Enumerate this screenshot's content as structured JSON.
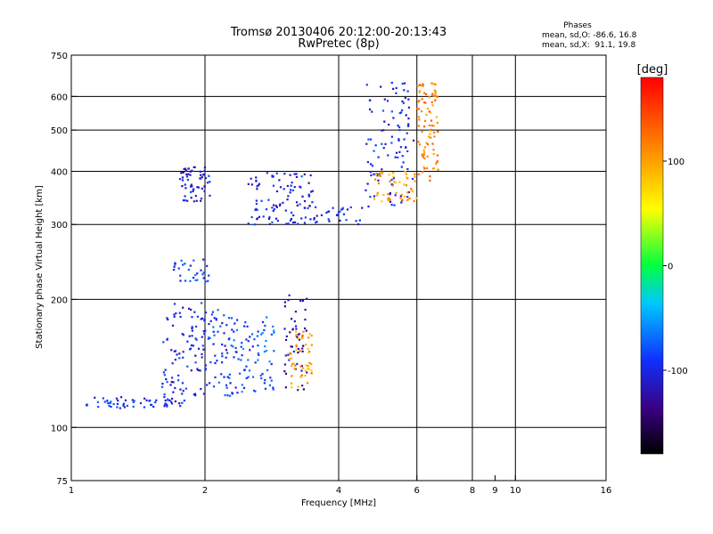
{
  "chart_data": {
    "type": "scatter",
    "title": "Tromsø 20130406 20:12:00-20:13:43",
    "subtitle": "RwPretec (8p)",
    "xlabel": "Frequency [MHz]",
    "ylabel": "Stationary phase Virtual Height [km]",
    "x_scale": "log",
    "y_scale": "log",
    "xlim": [
      1,
      16
    ],
    "ylim": [
      75,
      750
    ],
    "x_ticks": [
      {
        "value": 1,
        "label": "1"
      },
      {
        "value": 2,
        "label": "2"
      },
      {
        "value": 4,
        "label": "4"
      },
      {
        "value": 6,
        "label": "6"
      },
      {
        "value": 8,
        "label": "8"
      },
      {
        "value": 9,
        "label": "9"
      },
      {
        "value": 10,
        "label": "10"
      },
      {
        "value": 16,
        "label": "16"
      }
    ],
    "x_grid": [
      2,
      4,
      6,
      8,
      10
    ],
    "y_ticks": [
      {
        "value": 75,
        "label": "75"
      },
      {
        "value": 100,
        "label": "100"
      },
      {
        "value": 200,
        "label": "200"
      },
      {
        "value": 300,
        "label": "300"
      },
      {
        "value": 400,
        "label": "400"
      },
      {
        "value": 500,
        "label": "500"
      },
      {
        "value": 600,
        "label": "600"
      },
      {
        "value": 750,
        "label": "750"
      }
    ],
    "y_grid": [
      100,
      200,
      300,
      400,
      500,
      600
    ],
    "grid": true,
    "stats": {
      "header": "Phases",
      "line1": "mean, sd,O: -86.6, 16.8",
      "line2": "mean, sd,X:  91.1, 19.8"
    },
    "colorbar": {
      "label": "[deg]",
      "range": [
        -180,
        180
      ],
      "ticks": [
        {
          "value": 100,
          "label": "100"
        },
        {
          "value": 0,
          "label": "0"
        },
        {
          "value": -100,
          "label": "-100"
        }
      ],
      "colormap": "rainbow (black-purple-blue-cyan-green-yellow-orange-red)"
    },
    "traces": [
      {
        "x0": 1.08,
        "x1": 1.8,
        "y0": 111,
        "y1": 118,
        "phase": -95,
        "n": 60
      },
      {
        "x0": 1.6,
        "x1": 2.0,
        "y0": 118,
        "y1": 200,
        "phase": -100,
        "n": 90
      },
      {
        "x0": 2.0,
        "x1": 2.3,
        "y0": 118,
        "y1": 190,
        "phase": -90,
        "n": 60
      },
      {
        "x0": 2.3,
        "x1": 2.9,
        "y0": 120,
        "y1": 185,
        "phase": -80,
        "n": 80
      },
      {
        "x0": 3.0,
        "x1": 3.4,
        "y0": 122,
        "y1": 205,
        "phase": -120,
        "n": 50
      },
      {
        "x0": 3.1,
        "x1": 3.5,
        "y0": 122,
        "y1": 170,
        "phase": 105,
        "n": 50
      },
      {
        "x0": 1.7,
        "x1": 2.05,
        "y0": 220,
        "y1": 250,
        "phase": -85,
        "n": 30
      },
      {
        "x0": 1.75,
        "x1": 2.05,
        "y0": 340,
        "y1": 410,
        "phase": -110,
        "n": 60
      },
      {
        "x0": 2.5,
        "x1": 3.5,
        "y0": 300,
        "y1": 400,
        "phase": -100,
        "n": 100
      },
      {
        "x0": 3.5,
        "x1": 4.6,
        "y0": 300,
        "y1": 330,
        "phase": -95,
        "n": 30
      },
      {
        "x0": 4.6,
        "x1": 5.9,
        "y0": 330,
        "y1": 650,
        "phase": -100,
        "n": 100
      },
      {
        "x0": 4.8,
        "x1": 6.0,
        "y0": 340,
        "y1": 400,
        "phase": 100,
        "n": 50
      },
      {
        "x0": 6.0,
        "x1": 6.7,
        "y0": 380,
        "y1": 650,
        "phase": 115,
        "n": 90
      }
    ]
  }
}
